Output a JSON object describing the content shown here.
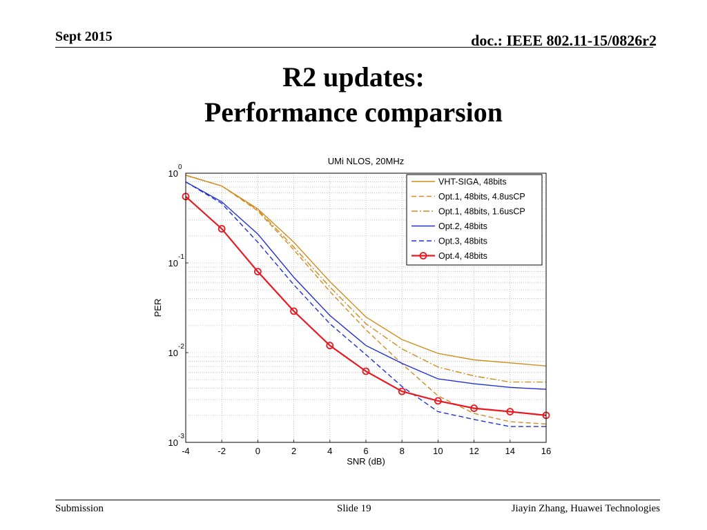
{
  "header": {
    "date": "Sept 2015",
    "doc": "doc.: IEEE 802.11-15/0826r2"
  },
  "title": {
    "line1": "R2 updates:",
    "line2": "Performance comparsion"
  },
  "footer": {
    "left": "Submission",
    "center": "Slide 19",
    "right": "Jiayin Zhang, Huawei Technologies"
  },
  "chart_data": {
    "type": "line",
    "title": "UMi NLOS, 20MHz",
    "xlabel": "SNR (dB)",
    "ylabel": "PER",
    "xlim": [
      -4,
      16
    ],
    "ylim": [
      0.001,
      1
    ],
    "yscale": "log",
    "grid": true,
    "legend_position": "top-right",
    "x": [
      -4,
      -2,
      0,
      2,
      4,
      6,
      8,
      10,
      12,
      14,
      16
    ],
    "xticks": [
      "-4",
      "-2",
      "0",
      "2",
      "4",
      "6",
      "8",
      "10",
      "12",
      "14",
      "16"
    ],
    "yticks": [
      {
        "base": "10",
        "exp": "0"
      },
      {
        "base": "10",
        "exp": "-1"
      },
      {
        "base": "10",
        "exp": "-2"
      },
      {
        "base": "10",
        "exp": "-3"
      }
    ],
    "series": [
      {
        "name": "VHT-SIGA, 48bits",
        "color": "#d08c1c",
        "dash": "solid",
        "marker": "none",
        "values": [
          0.95,
          0.72,
          0.4,
          0.17,
          0.062,
          0.025,
          0.014,
          0.0098,
          0.0083,
          0.0077,
          0.0071
        ]
      },
      {
        "name": "Opt.1, 48bits, 4.8usCP",
        "color": "#d08c1c",
        "dash": "dashed",
        "marker": "none",
        "values": [
          0.95,
          0.72,
          0.38,
          0.14,
          0.048,
          0.018,
          0.0075,
          0.0033,
          0.0021,
          0.0017,
          0.0016
        ]
      },
      {
        "name": "Opt.1, 48bits, 1.6usCP",
        "color": "#d08c1c",
        "dash": "dashdot",
        "marker": "none",
        "values": [
          0.95,
          0.72,
          0.39,
          0.15,
          0.054,
          0.021,
          0.011,
          0.0069,
          0.0055,
          0.0047,
          0.0047
        ]
      },
      {
        "name": "Opt.2, 48bits",
        "color": "#1f2fd6",
        "dash": "solid",
        "marker": "none",
        "values": [
          0.8,
          0.48,
          0.21,
          0.069,
          0.026,
          0.012,
          0.0076,
          0.0051,
          0.0045,
          0.0041,
          0.0039
        ]
      },
      {
        "name": "Opt.3, 48bits",
        "color": "#1f2fd6",
        "dash": "dashed",
        "marker": "none",
        "values": [
          0.8,
          0.46,
          0.17,
          0.057,
          0.021,
          0.0095,
          0.0042,
          0.0022,
          0.0018,
          0.0015,
          0.0015
        ]
      },
      {
        "name": "Opt.4, 48bits",
        "color": "#e8191f",
        "dash": "solid",
        "marker": "circle",
        "values": [
          0.55,
          0.24,
          0.08,
          0.029,
          0.012,
          0.0062,
          0.0037,
          0.0029,
          0.0024,
          0.0022,
          0.002
        ]
      }
    ]
  }
}
